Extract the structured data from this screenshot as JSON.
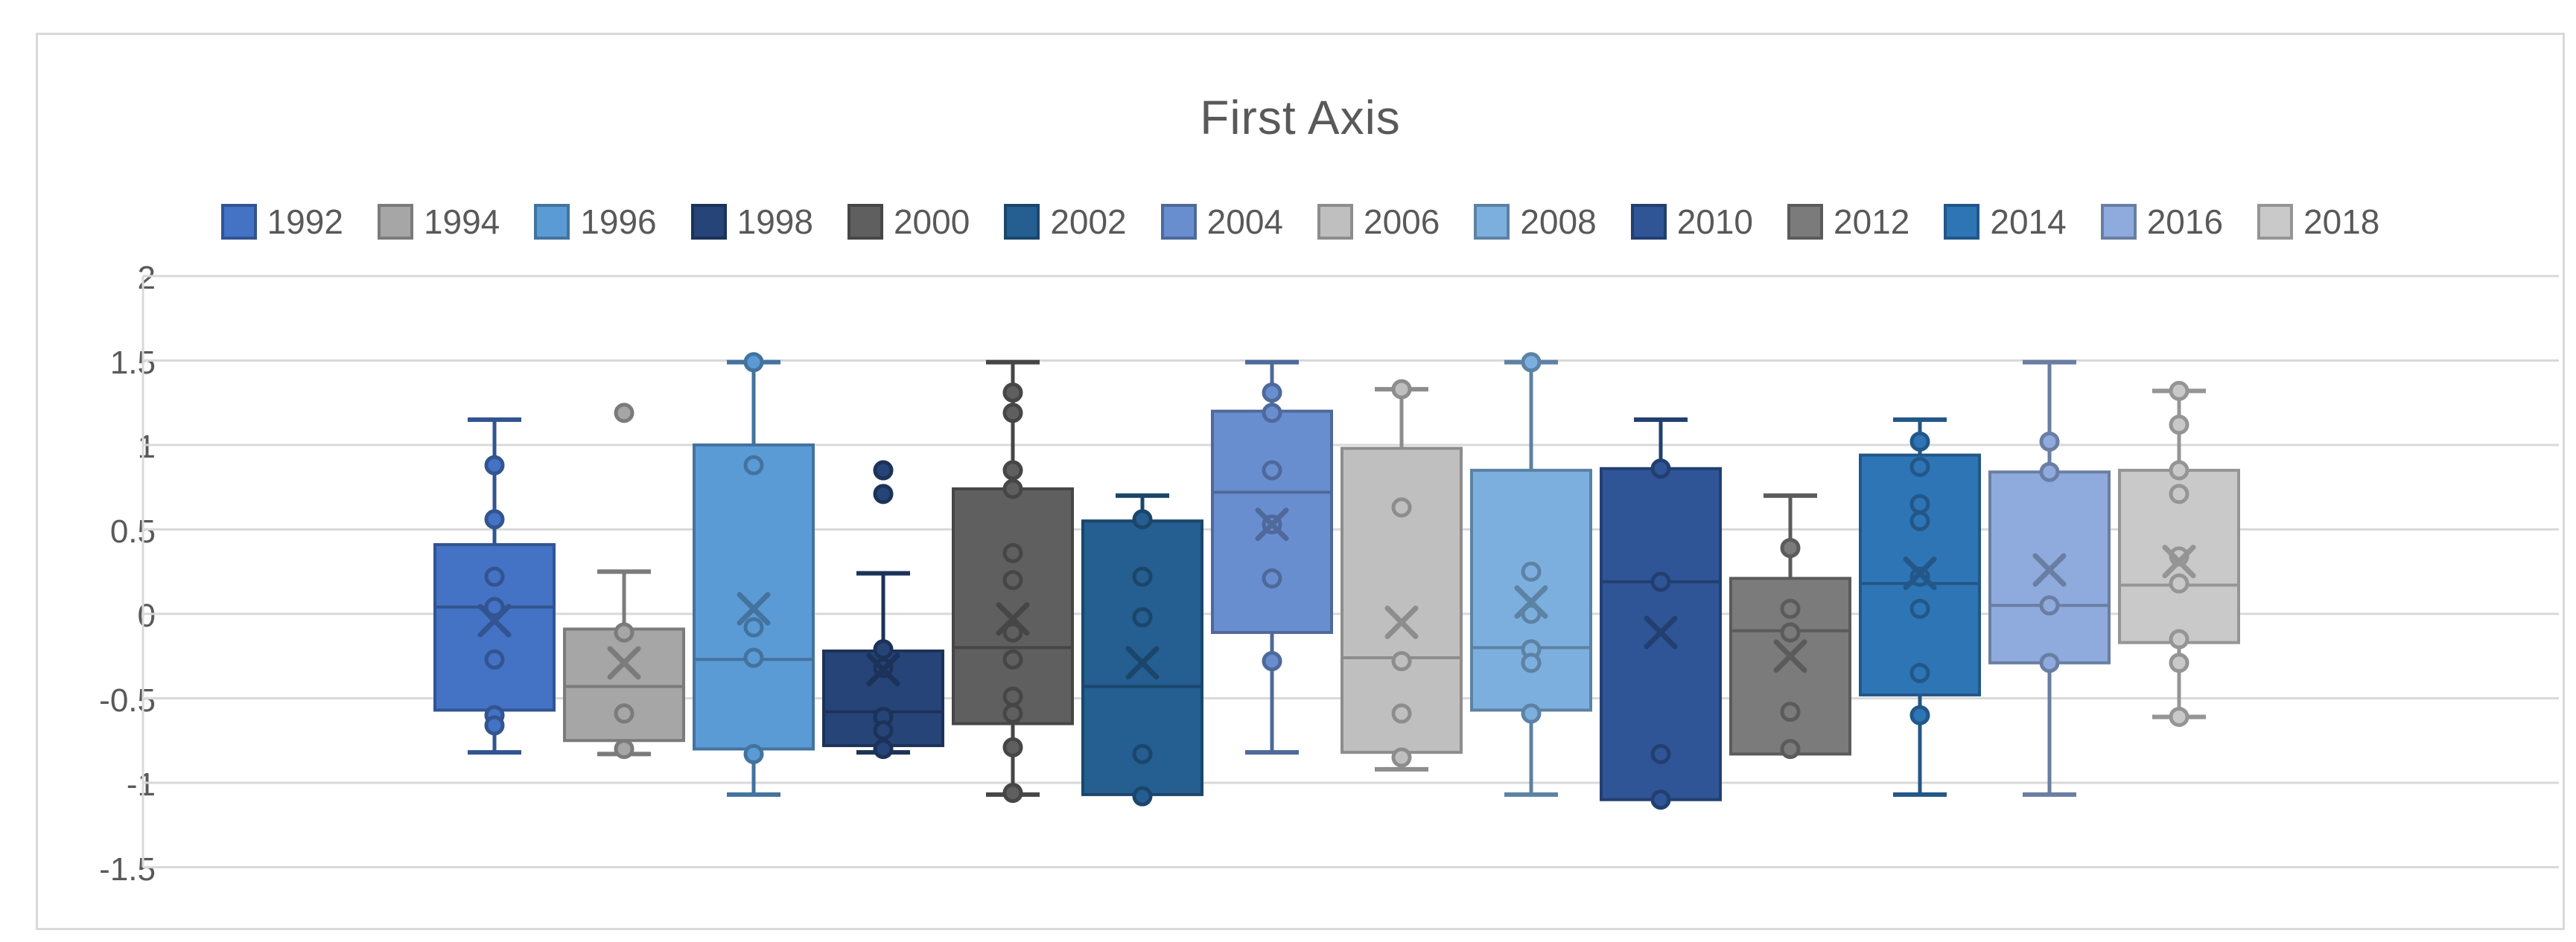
{
  "chart": {
    "title": "First Axis",
    "title_color": "#595959",
    "grid_color": "#D9D9D9",
    "axis_text_color": "#595959",
    "legend_text_color": "#595959",
    "background": "#FFFFFF",
    "card_border_color": "#D9D9D9"
  },
  "y_axis": {
    "tick_labels": [
      "2",
      "1.5",
      "1",
      "0.5",
      "0",
      "-0.5",
      "-1",
      "-1.5"
    ],
    "tick_values": [
      2,
      1.5,
      1,
      0.5,
      0,
      -0.5,
      -1,
      -1.5
    ]
  },
  "chart_data": {
    "type": "boxplot",
    "title": "First Axis",
    "ylim": [
      -1.5,
      2
    ],
    "ytick_step": 0.5,
    "grid": true,
    "legend_position": "top",
    "categories": [
      "1992",
      "1994",
      "1996",
      "1998",
      "2000",
      "2002",
      "2004",
      "2006",
      "2008",
      "2010",
      "2012",
      "2014",
      "2016",
      "2018"
    ],
    "series": [
      {
        "name": "1992",
        "color": "#4472C4",
        "min": -0.82,
        "q1": -0.57,
        "median": 0.04,
        "q3": 0.41,
        "max": 1.15,
        "mean": -0.04,
        "points": [
          0.88,
          0.56,
          0.22,
          0.04,
          -0.27,
          -0.6,
          -0.66
        ],
        "outliers": []
      },
      {
        "name": "1994",
        "color": "#A6A6A6",
        "min": -0.83,
        "q1": -0.75,
        "median": -0.43,
        "q3": -0.09,
        "max": 0.25,
        "mean": -0.29,
        "points": [
          -0.11,
          -0.59,
          -0.8
        ],
        "outliers": [
          1.19
        ]
      },
      {
        "name": "1996",
        "color": "#5B9BD5",
        "min": -1.07,
        "q1": -0.8,
        "median": -0.27,
        "q3": 1.0,
        "max": 1.49,
        "mean": 0.03,
        "points": [
          1.49,
          0.88,
          -0.08,
          -0.26,
          -0.83
        ],
        "outliers": []
      },
      {
        "name": "1998",
        "color": "#264478",
        "min": -0.82,
        "q1": -0.78,
        "median": -0.58,
        "q3": -0.22,
        "max": 0.24,
        "mean": -0.33,
        "points": [
          -0.21,
          -0.32,
          -0.61,
          -0.69,
          -0.8
        ],
        "outliers": [
          0.85,
          0.71
        ]
      },
      {
        "name": "2000",
        "color": "#5F5F5F",
        "min": -1.07,
        "q1": -0.65,
        "median": -0.2,
        "q3": 0.74,
        "max": 1.49,
        "mean": -0.03,
        "points": [
          1.31,
          1.19,
          0.85,
          0.74,
          0.36,
          0.2,
          -0.11,
          -0.27,
          -0.49,
          -0.59,
          -0.79,
          -1.06
        ],
        "outliers": []
      },
      {
        "name": "2002",
        "color": "#255E91",
        "min": -1.07,
        "q1": -1.07,
        "median": -0.43,
        "q3": 0.55,
        "max": 0.7,
        "mean": -0.29,
        "points": [
          0.56,
          0.22,
          -0.02,
          -0.83,
          -1.08
        ],
        "outliers": []
      },
      {
        "name": "2004",
        "color": "#698ED0",
        "min": -0.82,
        "q1": -0.11,
        "median": 0.72,
        "q3": 1.2,
        "max": 1.49,
        "mean": 0.53,
        "points": [
          1.31,
          1.19,
          0.85,
          0.53,
          0.21,
          -0.28
        ],
        "outliers": []
      },
      {
        "name": "2006",
        "color": "#BFBFBF",
        "min": -0.92,
        "q1": -0.82,
        "median": -0.26,
        "q3": 0.98,
        "max": 1.33,
        "mean": -0.05,
        "points": [
          1.33,
          0.63,
          -0.28,
          -0.59,
          -0.85
        ],
        "outliers": []
      },
      {
        "name": "2008",
        "color": "#7CAFDD",
        "min": -1.07,
        "q1": -0.57,
        "median": -0.2,
        "q3": 0.85,
        "max": 1.49,
        "mean": 0.07,
        "points": [
          1.49,
          0.25,
          0.0,
          -0.21,
          -0.29,
          -0.59
        ],
        "outliers": []
      },
      {
        "name": "2010",
        "color": "#2F5597",
        "min": -1.1,
        "q1": -1.1,
        "median": 0.19,
        "q3": 0.86,
        "max": 1.15,
        "mean": -0.11,
        "points": [
          0.86,
          0.19,
          -0.83,
          -1.1
        ],
        "outliers": []
      },
      {
        "name": "2012",
        "color": "#7B7B7B",
        "min": -0.83,
        "q1": -0.83,
        "median": -0.1,
        "q3": 0.21,
        "max": 0.7,
        "mean": -0.25,
        "points": [
          0.39,
          0.03,
          -0.11,
          -0.58,
          -0.8
        ],
        "outliers": []
      },
      {
        "name": "2014",
        "color": "#2E75B6",
        "min": -1.07,
        "q1": -0.48,
        "median": 0.18,
        "q3": 0.94,
        "max": 1.15,
        "mean": 0.24,
        "points": [
          1.02,
          0.87,
          0.65,
          0.55,
          0.22,
          0.03,
          -0.35,
          -0.6
        ],
        "outliers": []
      },
      {
        "name": "2016",
        "color": "#8FAADC",
        "min": -1.07,
        "q1": -0.29,
        "median": 0.05,
        "q3": 0.84,
        "max": 1.49,
        "mean": 0.26,
        "points": [
          1.02,
          0.84,
          0.05,
          -0.29
        ],
        "outliers": []
      },
      {
        "name": "2018",
        "color": "#C9C9C9",
        "min": -0.61,
        "q1": -0.17,
        "median": 0.17,
        "q3": 0.85,
        "max": 1.32,
        "mean": 0.31,
        "points": [
          1.32,
          1.12,
          0.85,
          0.71,
          0.34,
          0.18,
          -0.15,
          -0.29,
          -0.61
        ],
        "outliers": []
      }
    ]
  }
}
